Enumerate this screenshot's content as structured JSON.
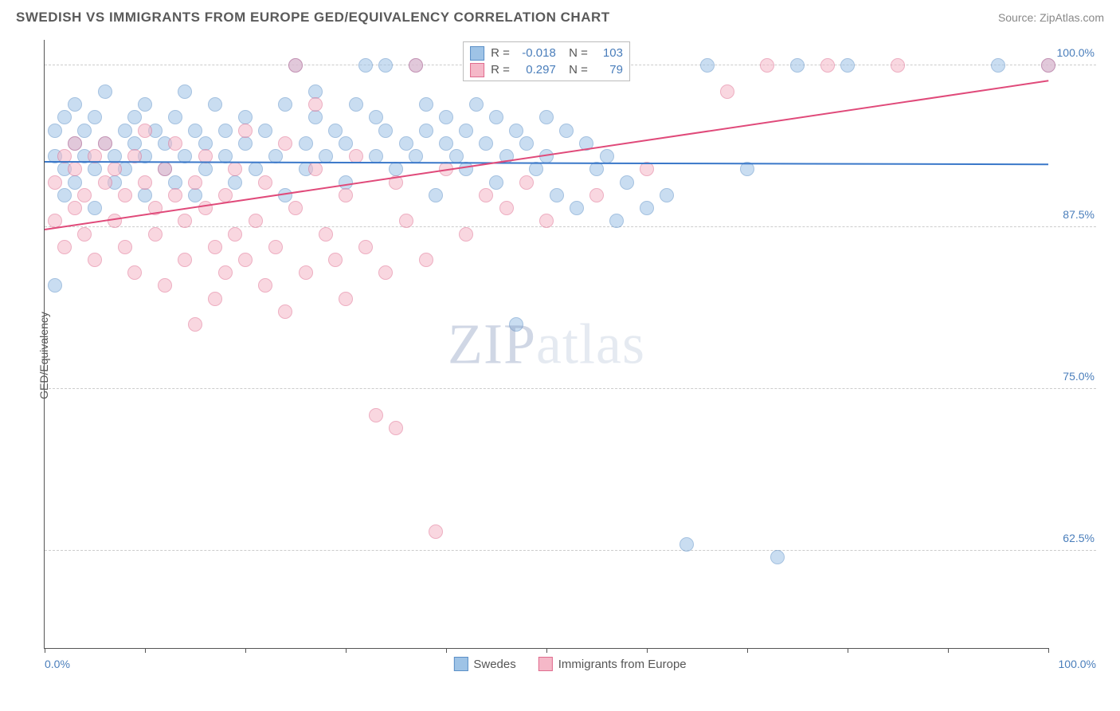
{
  "header": {
    "title": "SWEDISH VS IMMIGRANTS FROM EUROPE GED/EQUIVALENCY CORRELATION CHART",
    "source": "Source: ZipAtlas.com"
  },
  "chart": {
    "type": "scatter",
    "yaxis_title": "GED/Equivalency",
    "watermark": "ZIPatlas",
    "xlim": [
      0,
      100
    ],
    "ylim": [
      55,
      102
    ],
    "xticks_pct": [
      0,
      10,
      20,
      30,
      40,
      50,
      60,
      70,
      80,
      90,
      100
    ],
    "yticks": [
      {
        "v": 62.5,
        "label": "62.5%"
      },
      {
        "v": 75.0,
        "label": "75.0%"
      },
      {
        "v": 87.5,
        "label": "87.5%"
      },
      {
        "v": 100.0,
        "label": "100.0%"
      }
    ],
    "xaxis_label_left": "0.0%",
    "xaxis_label_right": "100.0%",
    "background_color": "#ffffff",
    "grid_color": "#cccccc",
    "axis_color": "#555555",
    "tick_label_color": "#4a7ebb",
    "marker_radius": 9,
    "marker_opacity": 0.55,
    "series": [
      {
        "name": "Swedes",
        "fill": "#9ec3e6",
        "stroke": "#5b8fc7",
        "trend_color": "#3a78c9",
        "R": "-0.018",
        "N": "103",
        "trend": {
          "y_at_x0": 92.5,
          "y_at_x100": 92.3
        },
        "points": [
          [
            1,
            93
          ],
          [
            1,
            95
          ],
          [
            1,
            83
          ],
          [
            2,
            92
          ],
          [
            2,
            96
          ],
          [
            2,
            90
          ],
          [
            3,
            94
          ],
          [
            3,
            91
          ],
          [
            3,
            97
          ],
          [
            4,
            93
          ],
          [
            4,
            95
          ],
          [
            5,
            92
          ],
          [
            5,
            96
          ],
          [
            5,
            89
          ],
          [
            6,
            94
          ],
          [
            6,
            98
          ],
          [
            7,
            93
          ],
          [
            7,
            91
          ],
          [
            8,
            95
          ],
          [
            8,
            92
          ],
          [
            9,
            94
          ],
          [
            9,
            96
          ],
          [
            10,
            93
          ],
          [
            10,
            97
          ],
          [
            10,
            90
          ],
          [
            11,
            95
          ],
          [
            12,
            94
          ],
          [
            12,
            92
          ],
          [
            13,
            96
          ],
          [
            13,
            91
          ],
          [
            14,
            93
          ],
          [
            14,
            98
          ],
          [
            15,
            95
          ],
          [
            15,
            90
          ],
          [
            16,
            94
          ],
          [
            16,
            92
          ],
          [
            17,
            97
          ],
          [
            18,
            93
          ],
          [
            18,
            95
          ],
          [
            19,
            91
          ],
          [
            20,
            94
          ],
          [
            20,
            96
          ],
          [
            21,
            92
          ],
          [
            22,
            95
          ],
          [
            23,
            93
          ],
          [
            24,
            97
          ],
          [
            24,
            90
          ],
          [
            25,
            100
          ],
          [
            26,
            94
          ],
          [
            26,
            92
          ],
          [
            27,
            96
          ],
          [
            27,
            98
          ],
          [
            28,
            93
          ],
          [
            29,
            95
          ],
          [
            30,
            94
          ],
          [
            30,
            91
          ],
          [
            31,
            97
          ],
          [
            32,
            100
          ],
          [
            33,
            93
          ],
          [
            33,
            96
          ],
          [
            34,
            95
          ],
          [
            34,
            100
          ],
          [
            35,
            92
          ],
          [
            36,
            94
          ],
          [
            37,
            100
          ],
          [
            37,
            93
          ],
          [
            38,
            97
          ],
          [
            38,
            95
          ],
          [
            39,
            90
          ],
          [
            40,
            96
          ],
          [
            40,
            94
          ],
          [
            41,
            93
          ],
          [
            42,
            95
          ],
          [
            42,
            92
          ],
          [
            43,
            97
          ],
          [
            44,
            94
          ],
          [
            45,
            96
          ],
          [
            45,
            91
          ],
          [
            46,
            93
          ],
          [
            47,
            95
          ],
          [
            47,
            80
          ],
          [
            48,
            94
          ],
          [
            49,
            92
          ],
          [
            50,
            96
          ],
          [
            50,
            93
          ],
          [
            51,
            90
          ],
          [
            52,
            95
          ],
          [
            53,
            89
          ],
          [
            54,
            94
          ],
          [
            55,
            92
          ],
          [
            56,
            93
          ],
          [
            57,
            88
          ],
          [
            58,
            91
          ],
          [
            60,
            89
          ],
          [
            62,
            90
          ],
          [
            64,
            63
          ],
          [
            66,
            100
          ],
          [
            70,
            92
          ],
          [
            73,
            62
          ],
          [
            75,
            100
          ],
          [
            80,
            100
          ],
          [
            95,
            100
          ],
          [
            100,
            100
          ]
        ]
      },
      {
        "name": "Immigrants from Europe",
        "fill": "#f5b8c8",
        "stroke": "#e06c8f",
        "trend_color": "#e04a7a",
        "R": "0.297",
        "N": "79",
        "trend": {
          "y_at_x0": 87.3,
          "y_at_x100": 98.8
        },
        "points": [
          [
            1,
            91
          ],
          [
            1,
            88
          ],
          [
            2,
            93
          ],
          [
            2,
            86
          ],
          [
            3,
            92
          ],
          [
            3,
            89
          ],
          [
            3,
            94
          ],
          [
            4,
            90
          ],
          [
            4,
            87
          ],
          [
            5,
            93
          ],
          [
            5,
            85
          ],
          [
            6,
            91
          ],
          [
            6,
            94
          ],
          [
            7,
            88
          ],
          [
            7,
            92
          ],
          [
            8,
            90
          ],
          [
            8,
            86
          ],
          [
            9,
            93
          ],
          [
            9,
            84
          ],
          [
            10,
            91
          ],
          [
            10,
            95
          ],
          [
            11,
            89
          ],
          [
            11,
            87
          ],
          [
            12,
            92
          ],
          [
            12,
            83
          ],
          [
            13,
            90
          ],
          [
            13,
            94
          ],
          [
            14,
            88
          ],
          [
            14,
            85
          ],
          [
            15,
            91
          ],
          [
            15,
            80
          ],
          [
            16,
            89
          ],
          [
            16,
            93
          ],
          [
            17,
            86
          ],
          [
            17,
            82
          ],
          [
            18,
            90
          ],
          [
            18,
            84
          ],
          [
            19,
            92
          ],
          [
            19,
            87
          ],
          [
            20,
            85
          ],
          [
            20,
            95
          ],
          [
            21,
            88
          ],
          [
            22,
            83
          ],
          [
            22,
            91
          ],
          [
            23,
            86
          ],
          [
            24,
            94
          ],
          [
            24,
            81
          ],
          [
            25,
            89
          ],
          [
            25,
            100
          ],
          [
            26,
            84
          ],
          [
            27,
            92
          ],
          [
            27,
            97
          ],
          [
            28,
            87
          ],
          [
            29,
            85
          ],
          [
            30,
            90
          ],
          [
            30,
            82
          ],
          [
            31,
            93
          ],
          [
            32,
            86
          ],
          [
            33,
            73
          ],
          [
            34,
            84
          ],
          [
            35,
            91
          ],
          [
            35,
            72
          ],
          [
            36,
            88
          ],
          [
            37,
            100
          ],
          [
            38,
            85
          ],
          [
            39,
            64
          ],
          [
            40,
            92
          ],
          [
            42,
            87
          ],
          [
            44,
            90
          ],
          [
            46,
            89
          ],
          [
            48,
            91
          ],
          [
            50,
            88
          ],
          [
            55,
            90
          ],
          [
            60,
            92
          ],
          [
            68,
            98
          ],
          [
            72,
            100
          ],
          [
            78,
            100
          ],
          [
            85,
            100
          ],
          [
            100,
            100
          ]
        ]
      }
    ],
    "legend_series": [
      {
        "label": "Swedes",
        "fill": "#9ec3e6",
        "stroke": "#5b8fc7"
      },
      {
        "label": "Immigrants from Europe",
        "fill": "#f5b8c8",
        "stroke": "#e06c8f"
      }
    ]
  }
}
